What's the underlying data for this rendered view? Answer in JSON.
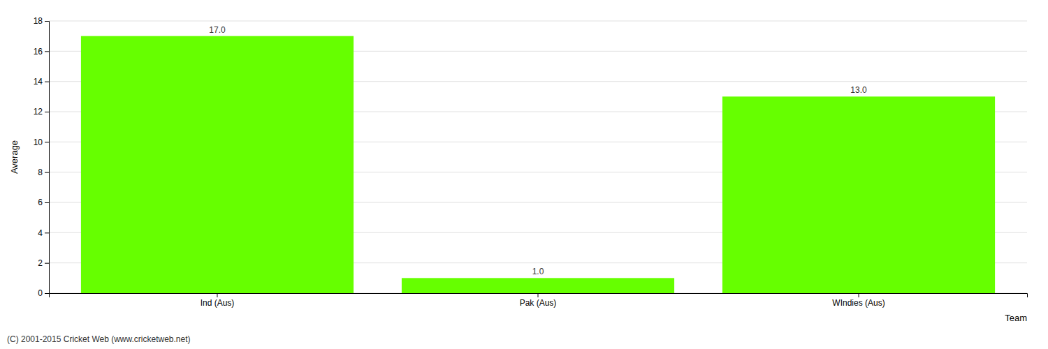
{
  "chart_data": {
    "type": "bar",
    "categories": [
      "Ind (Aus)",
      "Pak (Aus)",
      "WIndies (Aus)"
    ],
    "values": [
      17.0,
      1.0,
      13.0
    ],
    "value_labels": [
      "17.0",
      "1.0",
      "13.0"
    ],
    "data_labels": true,
    "color": "#66ff00",
    "ylabel": "Average",
    "xlabel": "Team",
    "ylim": [
      0,
      18
    ],
    "yticks": [
      0,
      2,
      4,
      6,
      8,
      10,
      12,
      14,
      16,
      18
    ],
    "grid": true,
    "annotations": [
      "(C) 2001-2015 Cricket Web (www.cricketweb.net)"
    ]
  }
}
